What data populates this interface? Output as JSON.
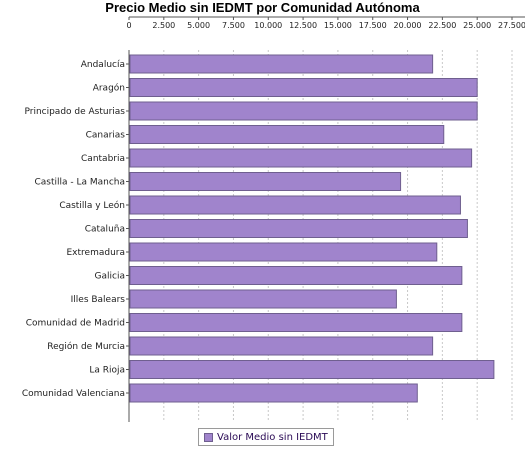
{
  "chart_data": {
    "type": "bar",
    "orientation": "horizontal",
    "title": "Precio Medio sin IEDMT por Comunidad Autónoma",
    "categories": [
      "Andalucía",
      "Aragón",
      "Principado de Asturias",
      "Canarias",
      "Cantabria",
      "Castilla - La Mancha",
      "Castilla y León",
      "Cataluña",
      "Extremadura",
      "Galicia",
      "Illes Balears",
      "Comunidad de Madrid",
      "Región de Murcia",
      "La Rioja",
      "Comunidad Valenciana"
    ],
    "series": [
      {
        "name": "Valor Medio sin IEDMT",
        "values": [
          21800,
          25000,
          25000,
          22600,
          24600,
          19500,
          23800,
          24300,
          22100,
          23900,
          19200,
          23900,
          21800,
          26200,
          20700
        ]
      }
    ],
    "x_ticks": [
      "0",
      "2.500",
      "5.000",
      "7.500",
      "10.000",
      "12.500",
      "15.000",
      "17.500",
      "20.000",
      "22.500",
      "25.000",
      "27.500"
    ],
    "xlim": [
      0,
      27500
    ],
    "axis_position": "top",
    "grid": true,
    "legend_position": "bottom",
    "colors": {
      "bar": "#a084cc",
      "bar_border": "#6f5f8f",
      "grid": "#c8c8c8"
    }
  }
}
